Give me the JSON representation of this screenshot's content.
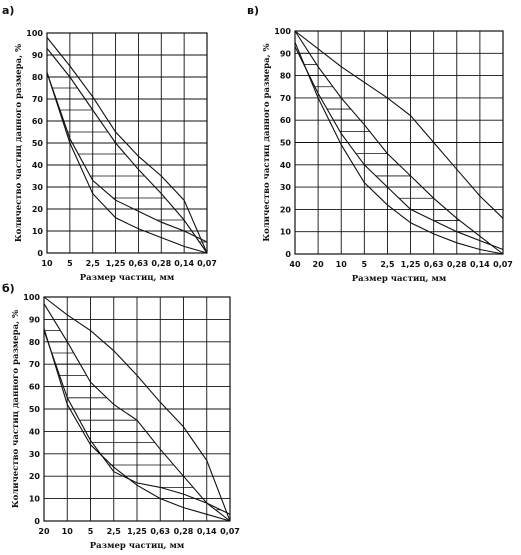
{
  "chart_data": [
    {
      "panel": "а)",
      "type": "line",
      "ylabel": "Количество частиц данного размера, %",
      "xlabel": "Размер частиц, мм",
      "categories": [
        "10",
        "5",
        "2,5",
        "1,25",
        "0,63",
        "0,28",
        "0,14",
        "0,07"
      ],
      "yticks": [
        "0",
        "10",
        "20",
        "30",
        "40",
        "50",
        "60",
        "70",
        "80",
        "90",
        "100"
      ],
      "ylim": [
        0,
        100
      ],
      "grid": true,
      "series": [
        {
          "values": [
            98,
            85,
            71,
            55,
            44,
            35,
            24,
            0
          ]
        },
        {
          "values": [
            82,
            52,
            33,
            24,
            19,
            14,
            10,
            5
          ]
        },
        {
          "values": [
            82,
            50,
            27,
            16,
            11,
            7,
            3,
            0
          ]
        },
        {
          "values": [
            93,
            80,
            65,
            50,
            38,
            27,
            15,
            0
          ]
        }
      ]
    },
    {
      "panel": "в)",
      "type": "line",
      "ylabel": "Количество частиц данного размера, %",
      "xlabel": "Размер частиц, мм",
      "categories": [
        "40",
        "20",
        "10",
        "5",
        "2,5",
        "1,25",
        "0,63",
        "0,28",
        "0,14",
        "0,07"
      ],
      "yticks": [
        "0",
        "10",
        "20",
        "30",
        "40",
        "50",
        "60",
        "70",
        "80",
        "90",
        "100"
      ],
      "ylim": [
        0,
        100
      ],
      "grid": true,
      "series": [
        {
          "values": [
            100,
            92,
            84,
            77,
            70,
            62,
            50,
            38,
            26,
            16
          ]
        },
        {
          "values": [
            93,
            72,
            54,
            40,
            30,
            20,
            15,
            10,
            6,
            2
          ]
        },
        {
          "values": [
            95,
            70,
            49,
            32,
            22,
            14,
            9,
            5,
            2,
            0
          ]
        },
        {
          "values": [
            100,
            84,
            70,
            58,
            45,
            35,
            25,
            16,
            8,
            0
          ]
        }
      ]
    },
    {
      "panel": "б)",
      "type": "line",
      "ylabel": "Количество частиц данного размера, %",
      "xlabel": "Размер частиц, мм",
      "categories": [
        "20",
        "10",
        "5",
        "2,5",
        "1,25",
        "0,63",
        "0,28",
        "0,14",
        "0,07"
      ],
      "yticks": [
        "0",
        "10",
        "20",
        "30",
        "40",
        "50",
        "60",
        "70",
        "80",
        "90",
        "100"
      ],
      "ylim": [
        0,
        100
      ],
      "grid": true,
      "series": [
        {
          "values": [
            100,
            92,
            85,
            76,
            65,
            53,
            42,
            27,
            0
          ]
        },
        {
          "values": [
            85,
            55,
            36,
            22,
            17,
            15,
            12,
            8,
            3
          ]
        },
        {
          "values": [
            86,
            52,
            34,
            24,
            16,
            10,
            6,
            3,
            0
          ]
        },
        {
          "values": [
            97,
            80,
            62,
            52,
            45,
            32,
            20,
            8,
            0
          ]
        }
      ]
    }
  ]
}
